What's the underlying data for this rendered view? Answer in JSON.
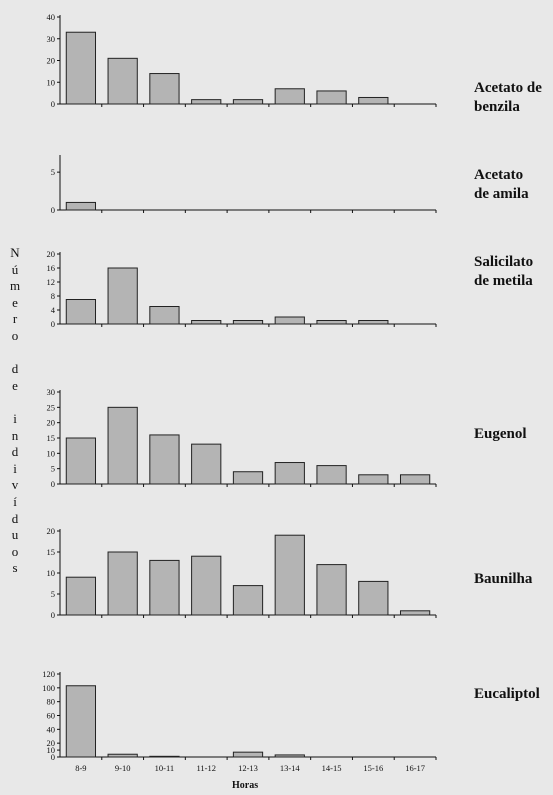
{
  "ylabel": "Número de indivíduos",
  "xlabel": "Horas",
  "chart_data": [
    {
      "type": "bar",
      "name": "Acetato de benzila",
      "label_lines": [
        "Acetato de",
        "benzila"
      ],
      "categories": [
        "8-9",
        "9-10",
        "10-11",
        "11-12",
        "12-13",
        "13-14",
        "14-15",
        "15-16",
        "16-17"
      ],
      "values": [
        33,
        21,
        14,
        2,
        2,
        7,
        6,
        3,
        0
      ],
      "ylim": [
        0,
        40
      ],
      "yticks": [
        0,
        10,
        20,
        30,
        40
      ]
    },
    {
      "type": "bar",
      "name": "Acetato de amila",
      "label_lines": [
        "Acetato",
        "de amila"
      ],
      "categories": [
        "8-9",
        "9-10",
        "10-11",
        "11-12",
        "12-13",
        "13-14",
        "14-15",
        "15-16",
        "16-17"
      ],
      "values": [
        1,
        0,
        0,
        0,
        0,
        0,
        0,
        0,
        0
      ],
      "ylim": [
        0,
        7
      ],
      "yticks": [
        0,
        5
      ]
    },
    {
      "type": "bar",
      "name": "Salicilato de metila",
      "label_lines": [
        "Salicilato",
        "de metila"
      ],
      "categories": [
        "8-9",
        "9-10",
        "10-11",
        "11-12",
        "12-13",
        "13-14",
        "14-15",
        "15-16",
        "16-17"
      ],
      "values": [
        7,
        16,
        5,
        1,
        1,
        2,
        1,
        1,
        0
      ],
      "ylim": [
        0,
        20
      ],
      "yticks": [
        0,
        4,
        8,
        12,
        16,
        20
      ]
    },
    {
      "type": "bar",
      "name": "Eugenol",
      "label_lines": [
        "Eugenol"
      ],
      "categories": [
        "8-9",
        "9-10",
        "10-11",
        "11-12",
        "12-13",
        "13-14",
        "14-15",
        "15-16",
        "16-17"
      ],
      "values": [
        15,
        25,
        16,
        13,
        4,
        7,
        6,
        3,
        3
      ],
      "ylim": [
        0,
        30
      ],
      "yticks": [
        0,
        5,
        10,
        15,
        20,
        25,
        30
      ]
    },
    {
      "type": "bar",
      "name": "Baunilha",
      "label_lines": [
        "Baunilha"
      ],
      "categories": [
        "8-9",
        "9-10",
        "10-11",
        "11-12",
        "12-13",
        "13-14",
        "14-15",
        "15-16",
        "16-17"
      ],
      "values": [
        9,
        15,
        13,
        14,
        7,
        19,
        12,
        8,
        1
      ],
      "ylim": [
        0,
        20
      ],
      "yticks": [
        0,
        5,
        10,
        15,
        20
      ]
    },
    {
      "type": "bar",
      "name": "Eucaliptol",
      "label_lines": [
        "Eucaliptol"
      ],
      "categories": [
        "8-9",
        "9-10",
        "10-11",
        "11-12",
        "12-13",
        "13-14",
        "14-15",
        "15-16",
        "16-17"
      ],
      "values": [
        103,
        4,
        1,
        0,
        7,
        3,
        0,
        0,
        0
      ],
      "ylim": [
        0,
        120
      ],
      "yticks": [
        0,
        10,
        20,
        40,
        60,
        80,
        100,
        120
      ],
      "show_xticklabels": true
    }
  ],
  "colors": {
    "bar_fill": "#b4b4b4",
    "bar_stroke": "#222222",
    "axis": "#111111",
    "background": "#e8e8e8"
  }
}
